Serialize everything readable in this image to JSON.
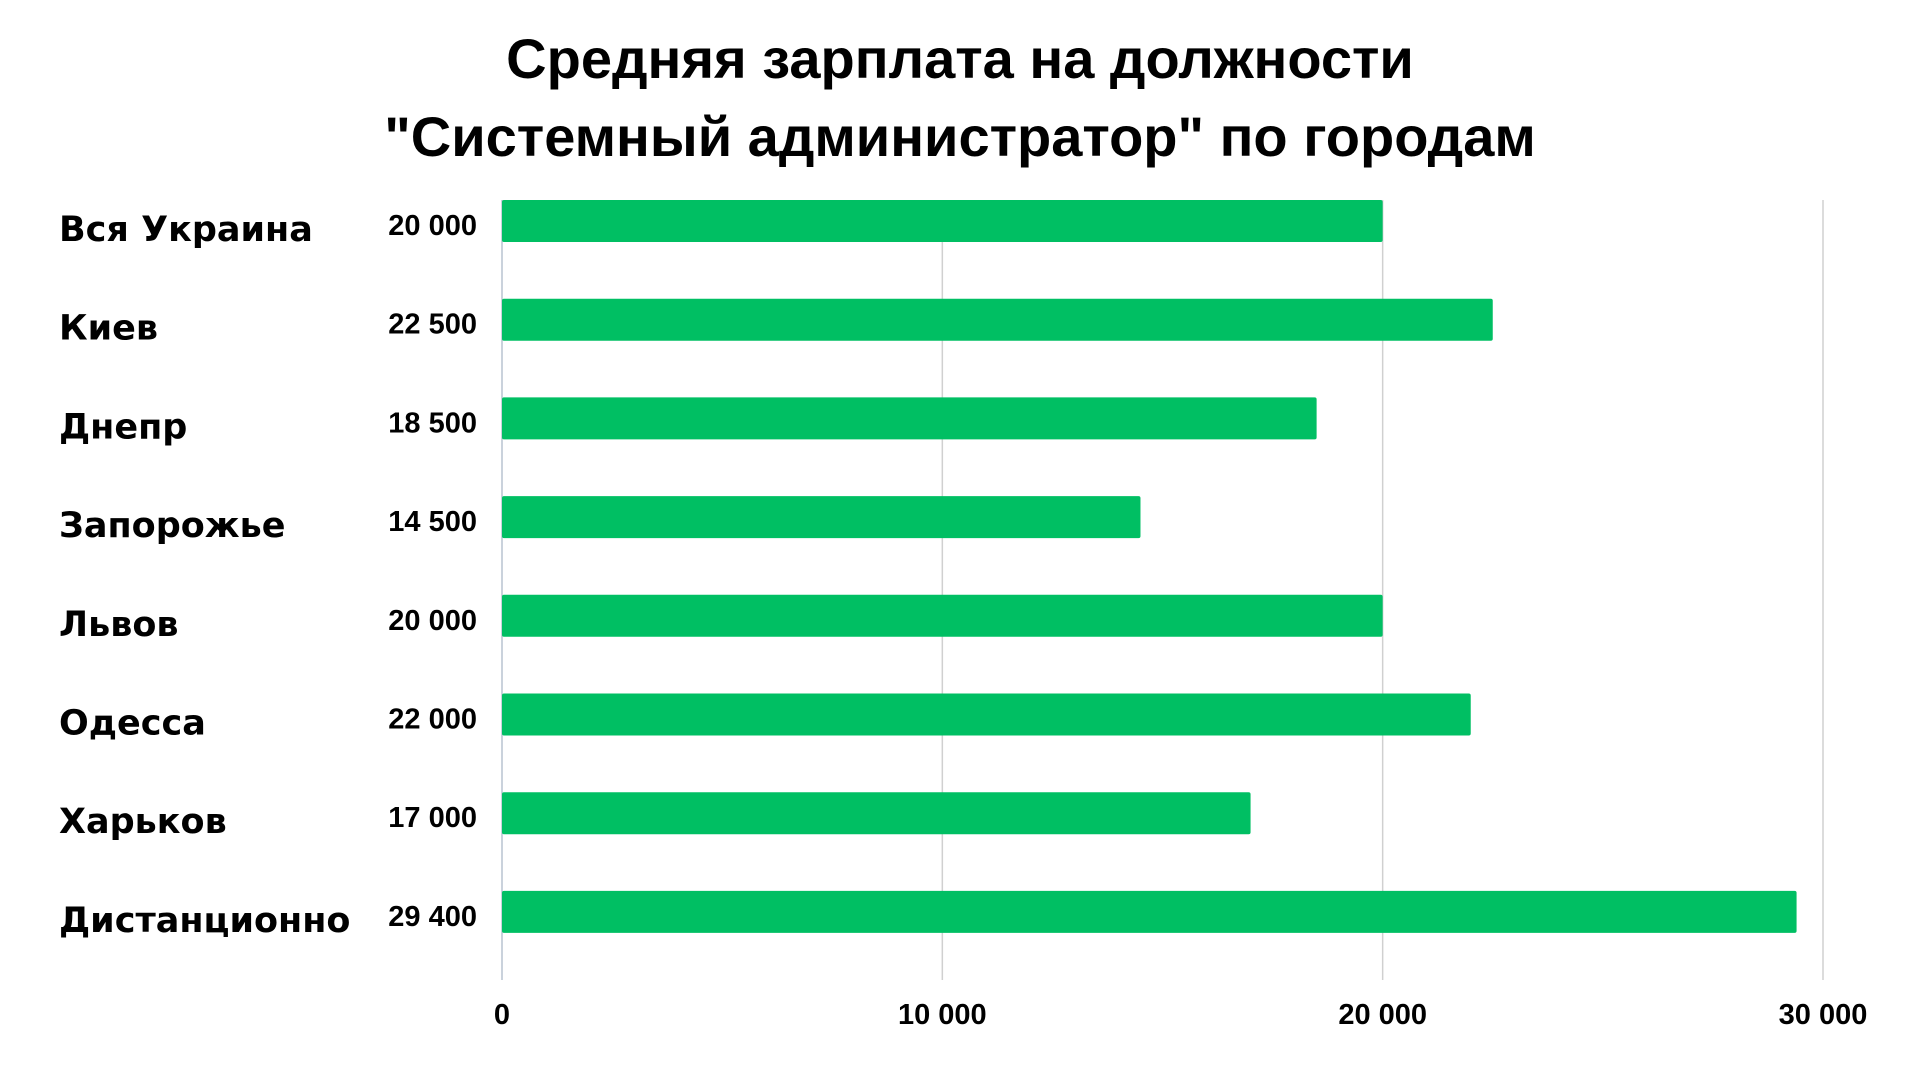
{
  "chart_data": {
    "type": "bar",
    "orientation": "horizontal",
    "title_lines": [
      "Средняя зарплата на должности",
      "\"Системный администратор\" по городам"
    ],
    "categories": [
      "Вся Украина",
      "Киев",
      "Днепр",
      "Запорожье",
      "Львов",
      "Одесса",
      "Харьков",
      "Дистанционно"
    ],
    "values": [
      20000,
      22500,
      18500,
      14500,
      20000,
      22000,
      17000,
      29400
    ],
    "value_labels": [
      "20 000",
      "22 500",
      "18 500",
      "14 500",
      "20 000",
      "22 000",
      "17 000",
      "29 400"
    ],
    "xlim": [
      0,
      30000
    ],
    "x_ticks": [
      0,
      10000,
      20000,
      30000
    ],
    "x_tick_labels": [
      "0",
      "10 000",
      "20 000",
      "30 000"
    ],
    "grid": true,
    "xlabel": "",
    "ylabel": "",
    "bar_color": "#00bf63",
    "grid_color": "#d0d0d0"
  }
}
